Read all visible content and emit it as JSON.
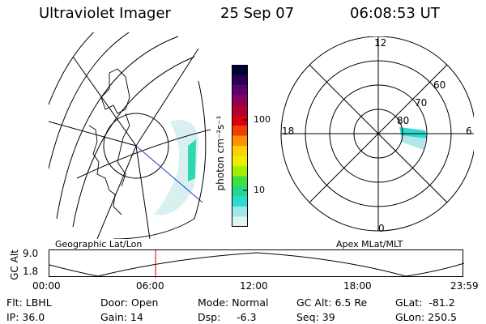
{
  "header": {
    "instrument": "Ultraviolet Imager",
    "date": "25 Sep 07",
    "time": "06:08:53 UT"
  },
  "left_panel": {
    "label": "Geographic Lat/Lon"
  },
  "right_panel": {
    "label": "Apex MLat/MLT",
    "mlt_labels": {
      "top": "12",
      "left": "18",
      "right": "6",
      "bottom": "0"
    },
    "lat_labels": [
      "60",
      "70",
      "80"
    ]
  },
  "colorbar": {
    "unit_label": "photon cm⁻²s⁻¹",
    "ticks": [
      "100",
      "10"
    ],
    "colors": [
      "#000033",
      "#2a0050",
      "#5a0070",
      "#8a0060",
      "#b00030",
      "#d80010",
      "#f04000",
      "#ff9000",
      "#ffd000",
      "#e8f000",
      "#a0f000",
      "#40e040",
      "#20d890",
      "#30d8d0",
      "#a0e8e8",
      "#e0f4f4"
    ]
  },
  "altitude_plot": {
    "ylabel": "GC Alt",
    "ytick_top": "9.0",
    "ytick_bottom": "1.8",
    "xticks": [
      "00:00",
      "06:00",
      "12:00",
      "18:00",
      "23:59"
    ],
    "current_time_fraction": 0.256,
    "marker_color": "#cc0000"
  },
  "info": {
    "flt": "Flt: LBHL",
    "ip": "IP: 36.0",
    "door": "Door: Open",
    "gain": "Gain: 14",
    "mode": "Mode: Normal",
    "dsp": "Dsp:     -6.3",
    "gcalt": "GC Alt: 6.5 Re",
    "seq": "Seq: 39",
    "glat": "GLat:  -81.2",
    "glon": "GLon: 250.5"
  }
}
